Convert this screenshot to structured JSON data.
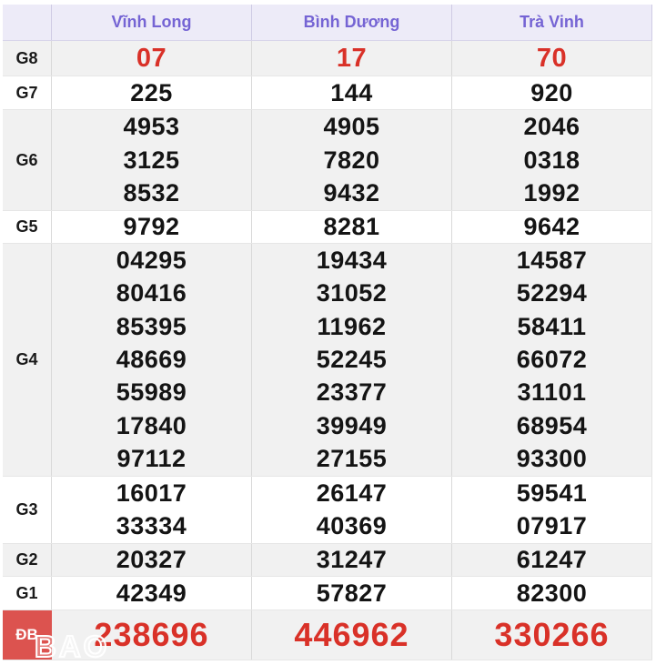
{
  "header": {
    "columns": [
      "Vĩnh Long",
      "Bình Dương",
      "Trà Vinh"
    ]
  },
  "table": {
    "rows": [
      {
        "label": "G8",
        "cols": [
          [
            "07"
          ],
          [
            "17"
          ],
          [
            "70"
          ]
        ]
      },
      {
        "label": "G7",
        "cols": [
          [
            "225"
          ],
          [
            "144"
          ],
          [
            "920"
          ]
        ]
      },
      {
        "label": "G6",
        "cols": [
          [
            "4953",
            "3125",
            "8532"
          ],
          [
            "4905",
            "7820",
            "9432"
          ],
          [
            "2046",
            "0318",
            "1992"
          ]
        ]
      },
      {
        "label": "G5",
        "cols": [
          [
            "9792"
          ],
          [
            "8281"
          ],
          [
            "9642"
          ]
        ]
      },
      {
        "label": "G4",
        "cols": [
          [
            "04295",
            "80416",
            "85395",
            "48669",
            "55989",
            "17840",
            "97112"
          ],
          [
            "19434",
            "31052",
            "11962",
            "52245",
            "23377",
            "39949",
            "27155"
          ],
          [
            "14587",
            "52294",
            "58411",
            "66072",
            "31101",
            "68954",
            "93300"
          ]
        ]
      },
      {
        "label": "G3",
        "cols": [
          [
            "16017",
            "33334"
          ],
          [
            "26147",
            "40369"
          ],
          [
            "59541",
            "07917"
          ]
        ]
      },
      {
        "label": "G2",
        "cols": [
          [
            "20327"
          ],
          [
            "31247"
          ],
          [
            "61247"
          ]
        ]
      },
      {
        "label": "G1",
        "cols": [
          [
            "42349"
          ],
          [
            "57827"
          ],
          [
            "82300"
          ]
        ]
      },
      {
        "label": "ĐB",
        "cols": [
          [
            "238696"
          ],
          [
            "446962"
          ],
          [
            "330266"
          ]
        ]
      }
    ]
  },
  "watermark": {
    "text": "BAO"
  },
  "colors": {
    "result_red": "#d93128",
    "header_purple": "#7564d4",
    "header_bg": "#edebf8",
    "stripe_gray": "#f1f1f1",
    "db_cell_bg": "#dc534f"
  }
}
